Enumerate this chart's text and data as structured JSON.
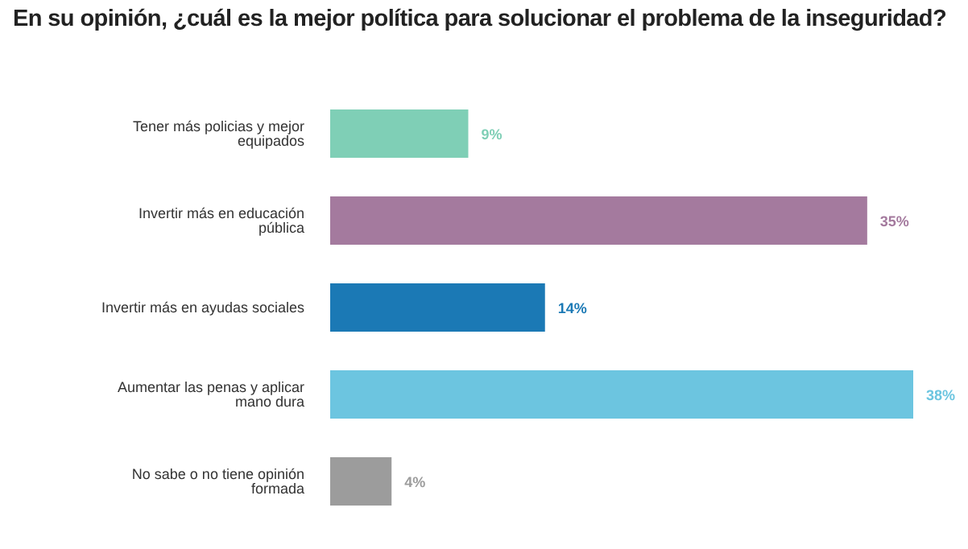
{
  "chart_data": {
    "type": "bar",
    "orientation": "horizontal",
    "title": "En su opinión, ¿cuál es la mejor política para solucionar el problema de la inseguridad?",
    "categories": [
      "Tener más policias y mejor equipados",
      "Invertir más en educación pública",
      "Invertir más en ayudas sociales",
      "Aumentar las penas y aplicar mano dura",
      "No sabe o no tiene opinión formada"
    ],
    "values": [
      9,
      35,
      14,
      38,
      4
    ],
    "value_labels": [
      "9%",
      "35%",
      "14%",
      "38%",
      "4%"
    ],
    "colors": [
      "#7fcfb6",
      "#a47a9e",
      "#1b79b5",
      "#6cc5e0",
      "#9c9c9c"
    ],
    "grid": false,
    "legend": false
  }
}
